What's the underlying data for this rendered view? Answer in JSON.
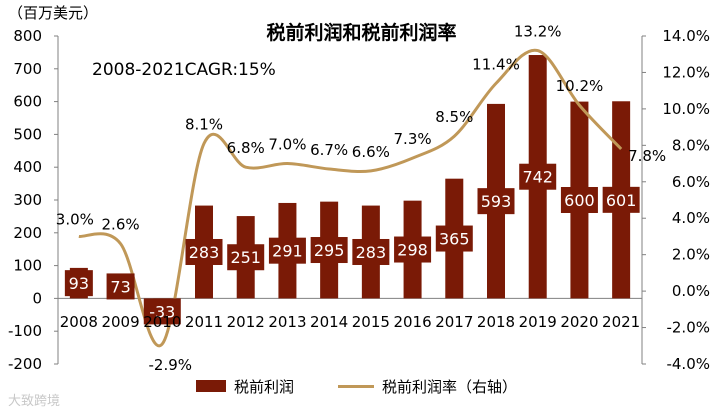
{
  "unit_label": "（百万美元）",
  "chart_data": {
    "type": "bar",
    "title": "税前利润和税前利润率",
    "annotation": "2008-2021CAGR:15%",
    "categories": [
      "2008",
      "2009",
      "2010",
      "2011",
      "2012",
      "2013",
      "2014",
      "2015",
      "2016",
      "2017",
      "2018",
      "2019",
      "2020",
      "2021"
    ],
    "bar_labels": [
      "93",
      "73",
      "-33",
      "283",
      "251",
      "291",
      "295",
      "283",
      "298",
      "365",
      "593",
      "742",
      "600",
      "601"
    ],
    "series": [
      {
        "name": "税前利润",
        "type": "bar",
        "axis": "left",
        "values": [
          93,
          73,
          -33,
          283,
          251,
          291,
          295,
          283,
          298,
          365,
          593,
          742,
          600,
          601
        ]
      },
      {
        "name": "税前利润率（右轴）",
        "type": "line",
        "axis": "right",
        "values": [
          3.0,
          2.6,
          -2.9,
          8.1,
          6.8,
          7.0,
          6.7,
          6.6,
          7.3,
          8.5,
          11.4,
          13.2,
          10.2,
          7.8
        ],
        "labels": [
          "3.0%",
          "2.6%",
          "-2.9%",
          "8.1%",
          "6.8%",
          "7.0%",
          "6.7%",
          "6.6%",
          "7.3%",
          "8.5%",
          "11.4%",
          "13.2%",
          "10.2%",
          "7.8%"
        ]
      }
    ],
    "y_left": {
      "min": -200,
      "max": 800,
      "ticks": [
        -200,
        -100,
        0,
        100,
        200,
        300,
        400,
        500,
        600,
        700,
        800
      ],
      "tick_labels": [
        "-200",
        "-100",
        "0",
        "100",
        "200",
        "300",
        "400",
        "500",
        "600",
        "700",
        "800"
      ]
    },
    "y_right": {
      "min": -4,
      "max": 14,
      "ticks": [
        -4,
        -2,
        0,
        2,
        4,
        6,
        8,
        10,
        12,
        14
      ],
      "tick_labels": [
        "-4.0%",
        "-2.0%",
        "0.0%",
        "2.0%",
        "4.0%",
        "6.0%",
        "8.0%",
        "10.0%",
        "12.0%",
        "14.0%"
      ]
    },
    "grid": false,
    "legend_position": "bottom",
    "colors": {
      "bar": "#7a1a06",
      "line": "#c09858",
      "bar_label": "#ffffff",
      "text": "#000000"
    }
  },
  "watermark": "大致跨境"
}
